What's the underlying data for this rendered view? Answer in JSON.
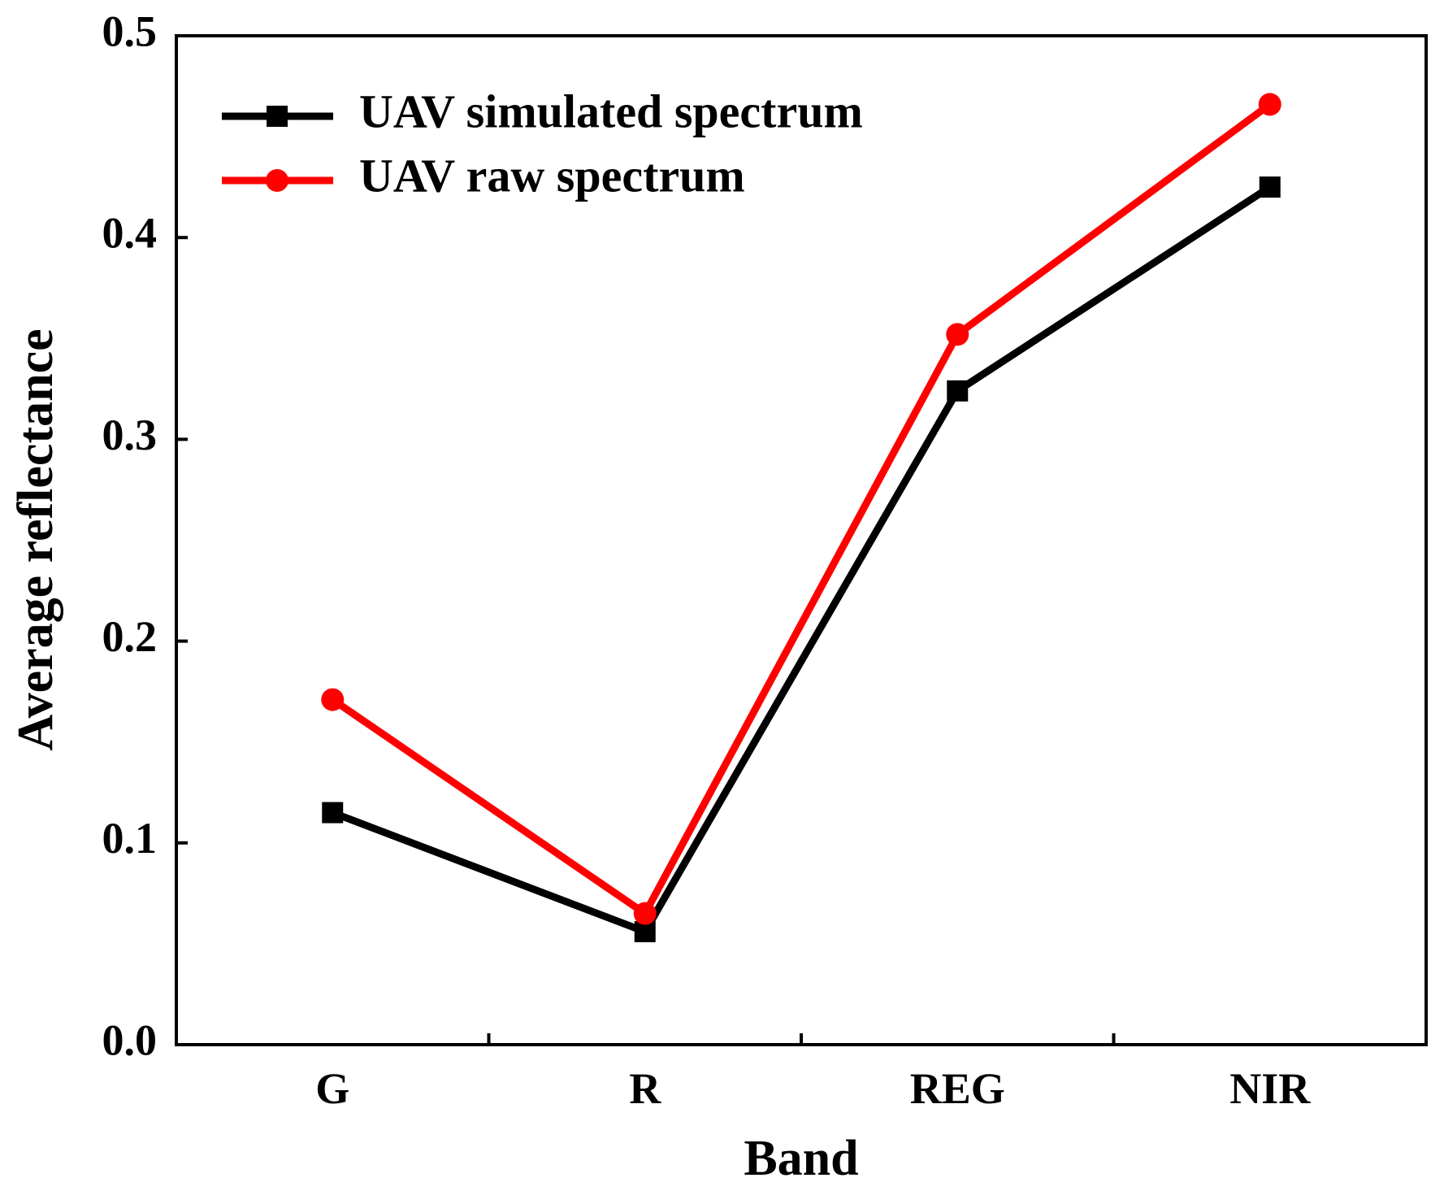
{
  "chart_data": {
    "type": "line",
    "title": "",
    "xlabel": "Band",
    "ylabel": "Average reflectance",
    "categories": [
      "G",
      "R",
      "REG",
      "NIR"
    ],
    "ylim": [
      0.0,
      0.5
    ],
    "yticks": [
      "0.0",
      "0.1",
      "0.2",
      "0.3",
      "0.4",
      "0.5"
    ],
    "grid": false,
    "legend_position": "top-left",
    "series": [
      {
        "name": "UAV simulated spectrum",
        "values": [
          0.115,
          0.056,
          0.324,
          0.425
        ],
        "color": "#000000",
        "marker": "square"
      },
      {
        "name": "UAV raw spectrum",
        "values": [
          0.171,
          0.065,
          0.352,
          0.466
        ],
        "color": "#ff0000",
        "marker": "circle"
      }
    ]
  }
}
